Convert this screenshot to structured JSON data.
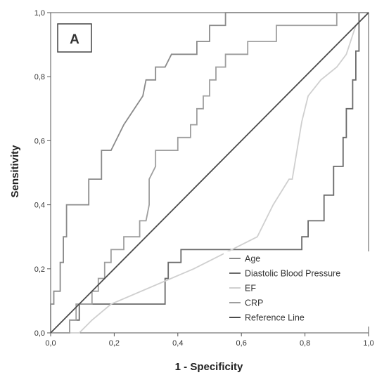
{
  "chart_data": {
    "type": "line",
    "title": "",
    "panel_label": "A",
    "xlabel": "1 - Specificity",
    "ylabel": "Sensitivity",
    "xlim": [
      0,
      1
    ],
    "ylim": [
      0,
      1
    ],
    "x_ticks": [
      "0,0",
      "0,2",
      "0,4",
      "0,6",
      "0,8",
      "1,0"
    ],
    "y_ticks": [
      "0,0",
      "0,2",
      "0,4",
      "0,6",
      "0,8",
      "1,0"
    ],
    "grid": false,
    "legend_position": "bottom-right",
    "series": [
      {
        "name": "Age",
        "color": "#8a8a8a",
        "points": [
          [
            0,
            0
          ],
          [
            0,
            0.09
          ],
          [
            0.01,
            0.09
          ],
          [
            0.01,
            0.13
          ],
          [
            0.03,
            0.13
          ],
          [
            0.03,
            0.22
          ],
          [
            0.04,
            0.22
          ],
          [
            0.04,
            0.3
          ],
          [
            0.05,
            0.3
          ],
          [
            0.05,
            0.4
          ],
          [
            0.12,
            0.4
          ],
          [
            0.12,
            0.48
          ],
          [
            0.16,
            0.48
          ],
          [
            0.16,
            0.57
          ],
          [
            0.19,
            0.57
          ],
          [
            0.23,
            0.65
          ],
          [
            0.29,
            0.74
          ],
          [
            0.3,
            0.79
          ],
          [
            0.33,
            0.79
          ],
          [
            0.33,
            0.83
          ],
          [
            0.36,
            0.83
          ],
          [
            0.38,
            0.87
          ],
          [
            0.46,
            0.87
          ],
          [
            0.46,
            0.91
          ],
          [
            0.5,
            0.91
          ],
          [
            0.5,
            0.96
          ],
          [
            0.55,
            0.96
          ],
          [
            0.55,
            1.0
          ],
          [
            0.96,
            1.0
          ]
        ]
      },
      {
        "name": "Diastolic Blood Pressure",
        "color": "#6a6a6a",
        "points": [
          [
            0,
            0
          ],
          [
            0.06,
            0
          ],
          [
            0.06,
            0.04
          ],
          [
            0.09,
            0.04
          ],
          [
            0.09,
            0.09
          ],
          [
            0.36,
            0.09
          ],
          [
            0.36,
            0.17
          ],
          [
            0.37,
            0.17
          ],
          [
            0.37,
            0.22
          ],
          [
            0.41,
            0.22
          ],
          [
            0.41,
            0.26
          ],
          [
            0.79,
            0.26
          ],
          [
            0.79,
            0.3
          ],
          [
            0.81,
            0.3
          ],
          [
            0.81,
            0.35
          ],
          [
            0.86,
            0.35
          ],
          [
            0.86,
            0.43
          ],
          [
            0.89,
            0.43
          ],
          [
            0.89,
            0.52
          ],
          [
            0.92,
            0.52
          ],
          [
            0.92,
            0.61
          ],
          [
            0.93,
            0.61
          ],
          [
            0.93,
            0.7
          ],
          [
            0.95,
            0.7
          ],
          [
            0.95,
            0.79
          ],
          [
            0.96,
            0.79
          ],
          [
            0.96,
            0.88
          ],
          [
            0.97,
            0.88
          ],
          [
            0.97,
            1.0
          ],
          [
            1.0,
            1.0
          ]
        ]
      },
      {
        "name": "EF",
        "color": "#cfcfcf",
        "points": [
          [
            0,
            0
          ],
          [
            0.09,
            0
          ],
          [
            0.13,
            0.04
          ],
          [
            0.19,
            0.09
          ],
          [
            0.45,
            0.2
          ],
          [
            0.57,
            0.26
          ],
          [
            0.65,
            0.3
          ],
          [
            0.7,
            0.4
          ],
          [
            0.75,
            0.48
          ],
          [
            0.76,
            0.48
          ],
          [
            0.79,
            0.66
          ],
          [
            0.81,
            0.74
          ],
          [
            0.85,
            0.79
          ],
          [
            0.9,
            0.83
          ],
          [
            0.93,
            0.87
          ],
          [
            0.96,
            0.96
          ],
          [
            1.0,
            1.0
          ]
        ]
      },
      {
        "name": "CRP",
        "color": "#9e9e9e",
        "points": [
          [
            0,
            0
          ],
          [
            0.06,
            0
          ],
          [
            0.06,
            0.04
          ],
          [
            0.08,
            0.04
          ],
          [
            0.08,
            0.09
          ],
          [
            0.13,
            0.09
          ],
          [
            0.13,
            0.13
          ],
          [
            0.15,
            0.13
          ],
          [
            0.15,
            0.17
          ],
          [
            0.17,
            0.17
          ],
          [
            0.17,
            0.22
          ],
          [
            0.19,
            0.22
          ],
          [
            0.19,
            0.26
          ],
          [
            0.23,
            0.26
          ],
          [
            0.23,
            0.3
          ],
          [
            0.28,
            0.3
          ],
          [
            0.28,
            0.35
          ],
          [
            0.3,
            0.35
          ],
          [
            0.31,
            0.4
          ],
          [
            0.31,
            0.48
          ],
          [
            0.33,
            0.52
          ],
          [
            0.33,
            0.57
          ],
          [
            0.4,
            0.57
          ],
          [
            0.4,
            0.61
          ],
          [
            0.44,
            0.61
          ],
          [
            0.44,
            0.65
          ],
          [
            0.46,
            0.65
          ],
          [
            0.46,
            0.7
          ],
          [
            0.48,
            0.7
          ],
          [
            0.48,
            0.74
          ],
          [
            0.5,
            0.74
          ],
          [
            0.5,
            0.79
          ],
          [
            0.52,
            0.79
          ],
          [
            0.52,
            0.83
          ],
          [
            0.55,
            0.83
          ],
          [
            0.55,
            0.87
          ],
          [
            0.62,
            0.87
          ],
          [
            0.62,
            0.91
          ],
          [
            0.71,
            0.91
          ],
          [
            0.71,
            0.96
          ],
          [
            0.9,
            0.96
          ],
          [
            0.9,
            1.0
          ],
          [
            1.0,
            1.0
          ]
        ]
      },
      {
        "name": "Reference Line",
        "color": "#4a4a4a",
        "points": [
          [
            0,
            0
          ],
          [
            1,
            1
          ]
        ]
      }
    ]
  }
}
